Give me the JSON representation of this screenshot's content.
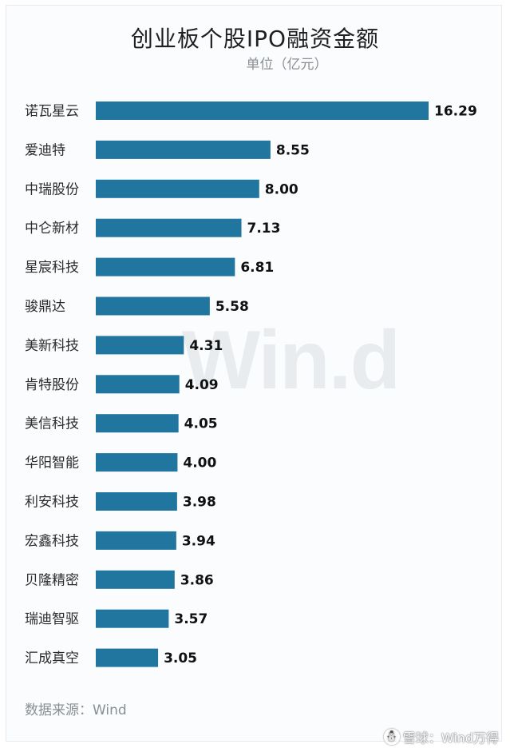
{
  "header": {
    "title": "创业板个股IPO融资金额",
    "unit": "单位（亿元）"
  },
  "footer": {
    "source": "数据来源：Wind",
    "watermark": "Win.d",
    "brand_text": "雪球：Wind万得",
    "brand_icon": "snowball-icon"
  },
  "colors": {
    "bar": "#20769f",
    "background": "#fafcfe"
  },
  "chart_data": {
    "type": "bar",
    "orientation": "horizontal",
    "title": "创业板个股IPO融资金额",
    "subtitle": "单位（亿元）",
    "categories": [
      "诺瓦星云",
      "爱迪特",
      "中瑞股份",
      "中仑新材",
      "星宸科技",
      "骏鼎达",
      "美新科技",
      "肯特股份",
      "美信科技",
      "华阳智能",
      "利安科技",
      "宏鑫科技",
      "贝隆精密",
      "瑞迪智驱",
      "汇成真空"
    ],
    "values": [
      16.29,
      8.55,
      8.0,
      7.13,
      6.81,
      5.58,
      4.31,
      4.09,
      4.05,
      4.0,
      3.98,
      3.94,
      3.86,
      3.57,
      3.05
    ],
    "value_labels": [
      "16.29",
      "8.55",
      "8.00",
      "7.13",
      "6.81",
      "5.58",
      "4.31",
      "4.09",
      "4.05",
      "4.00",
      "3.98",
      "3.94",
      "3.86",
      "3.57",
      "3.05"
    ],
    "xlim": [
      0,
      16.29
    ],
    "grid": false,
    "legend": "none"
  }
}
